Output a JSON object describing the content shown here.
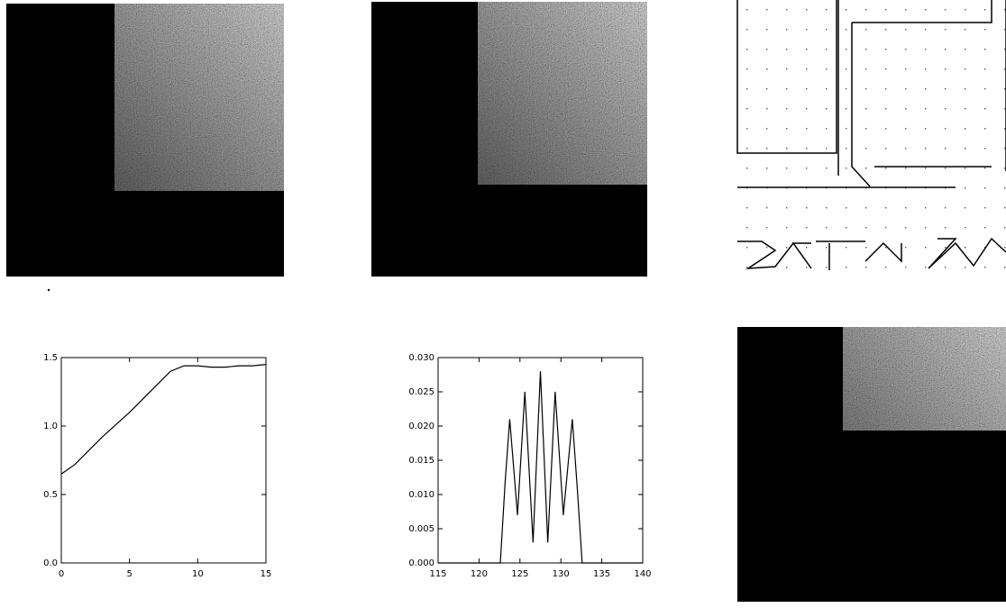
{
  "chart_data": [
    {
      "type": "line",
      "x": [
        0,
        1,
        2,
        3,
        4,
        5,
        6,
        7,
        8,
        9,
        10,
        11,
        12,
        13,
        14,
        15
      ],
      "values": [
        0.65,
        0.72,
        0.82,
        0.92,
        1.01,
        1.1,
        1.2,
        1.3,
        1.4,
        1.44,
        1.44,
        1.43,
        1.43,
        1.44,
        1.44,
        1.45
      ],
      "color": "#000000",
      "xlim": [
        0,
        15
      ],
      "xticks": [
        0,
        5,
        10,
        15
      ],
      "ylim": [
        0,
        1.5
      ],
      "yticks": [
        {
          "value": 0,
          "label": "0.0"
        },
        0.5,
        {
          "value": 1,
          "label": "1.0"
        },
        1.5
      ]
    },
    {
      "type": "line",
      "x": [
        115,
        122.6,
        123.2,
        123.75,
        124.7,
        125.6,
        126.6,
        127.5,
        128.4,
        129.3,
        130.3,
        131.4,
        132,
        132.6,
        140
      ],
      "values": [
        0,
        0,
        0.012,
        0.021,
        0.007,
        0.025,
        0.003,
        0.028,
        0.003,
        0.025,
        0.007,
        0.021,
        0.011,
        0,
        0
      ],
      "color": "#000000",
      "xlim": [
        115,
        140
      ],
      "xticks": [
        115,
        120,
        125,
        130,
        135,
        140
      ],
      "ylim": [
        0,
        0.03
      ],
      "yticks": [
        {
          "value": 0,
          "label": "0.000"
        },
        {
          "value": 0.005,
          "label": "0.005"
        },
        {
          "value": 0.01,
          "label": "0.010"
        },
        {
          "value": 0.015,
          "label": "0.015"
        },
        {
          "value": 0.02,
          "label": "0.020"
        },
        {
          "value": 0.025,
          "label": "0.025"
        },
        {
          "value": 0.03,
          "label": "0.030"
        }
      ]
    }
  ]
}
